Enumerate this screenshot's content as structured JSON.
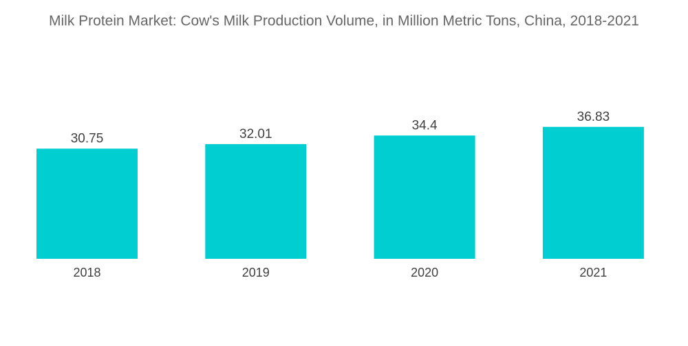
{
  "chart_data": {
    "type": "bar",
    "title": "Milk Protein Market: Cow's Milk Production Volume, in Million Metric Tons, China, 2018-2021",
    "categories": [
      "2018",
      "2019",
      "2020",
      "2021"
    ],
    "values": [
      30.75,
      32.01,
      34.4,
      36.83
    ],
    "data_labels": [
      "30.75",
      "32.01",
      "34.4",
      "36.83"
    ],
    "xlabel": "",
    "ylabel": "",
    "bar_color": "#00CED1",
    "grid": false,
    "legend": "none"
  }
}
